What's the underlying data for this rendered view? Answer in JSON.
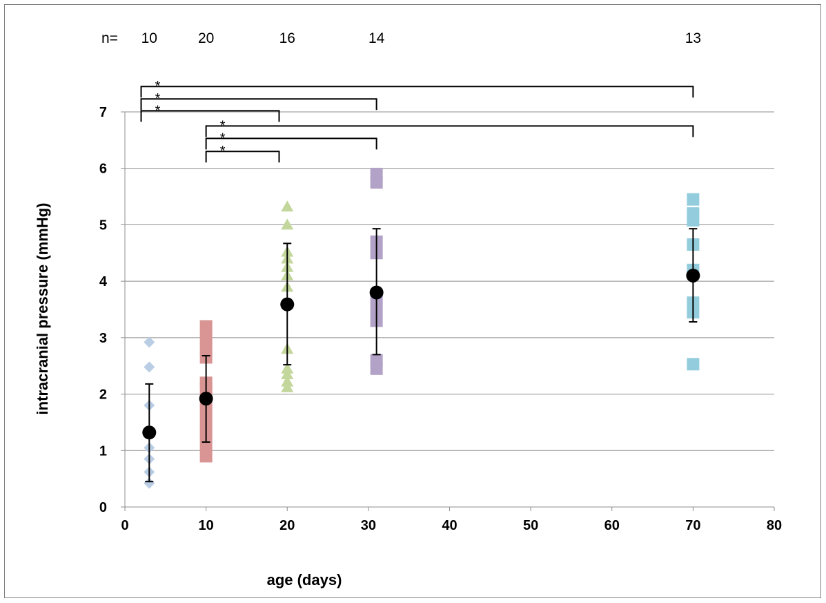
{
  "chart_data": {
    "type": "scatter",
    "xlabel": "age (days)",
    "ylabel": "intracranial pressure (mmHg)",
    "xlim": [
      0,
      80
    ],
    "ylim": [
      0,
      7
    ],
    "xticks": [
      0,
      10,
      20,
      30,
      40,
      50,
      60,
      70,
      80
    ],
    "yticks": [
      0,
      1,
      2,
      3,
      4,
      5,
      6,
      7
    ],
    "grid": "horizontal",
    "n_label": "n=",
    "groups": [
      {
        "x": 3,
        "n": "10",
        "marker": "diamond",
        "color": "#b9cde5",
        "points": [
          0.42,
          0.62,
          0.85,
          1.05,
          1.8,
          2.48,
          2.92
        ],
        "mean": 1.32,
        "err_low": 0.45,
        "err_high": 2.18
      },
      {
        "x": 10,
        "n": "20",
        "marker": "square",
        "color": "#d99594",
        "points": [
          0.9,
          1.1,
          1.3,
          1.5,
          1.7,
          1.9,
          2.1,
          2.2,
          2.65,
          2.8,
          3.0,
          3.2
        ],
        "mean": 1.92,
        "err_low": 1.15,
        "err_high": 2.68
      },
      {
        "x": 20,
        "n": "16",
        "marker": "triangle",
        "color": "#c3d69b",
        "points": [
          2.12,
          2.22,
          2.35,
          2.45,
          2.8,
          3.9,
          4.1,
          4.25,
          4.4,
          4.52,
          5.0,
          5.32
        ],
        "mean": 3.59,
        "err_low": 2.52,
        "err_high": 4.67
      },
      {
        "x": 31,
        "n": "14",
        "marker": "square",
        "color": "#b3a2c7",
        "points": [
          2.45,
          2.6,
          3.3,
          3.5,
          3.7,
          4.5,
          4.7,
          5.75,
          5.9
        ],
        "mean": 3.8,
        "err_low": 2.7,
        "err_high": 4.93
      },
      {
        "x": 70,
        "n": "13",
        "marker": "square",
        "color": "#93cddd",
        "points": [
          2.53,
          3.45,
          3.62,
          4.2,
          4.65,
          5.08,
          5.2,
          5.45
        ],
        "mean": 4.1,
        "err_low": 3.28,
        "err_high": 4.93
      }
    ],
    "significance": [
      {
        "from": 2,
        "to": 70,
        "y": 7.45,
        "label": "*"
      },
      {
        "from": 2,
        "to": 31,
        "y": 7.23,
        "label": "*"
      },
      {
        "from": 2,
        "to": 19,
        "y": 7.02,
        "label": "*"
      },
      {
        "from": 10,
        "to": 70,
        "y": 6.75,
        "label": "*"
      },
      {
        "from": 10,
        "to": 31,
        "y": 6.53,
        "label": "*"
      },
      {
        "from": 10,
        "to": 19,
        "y": 6.3,
        "label": "*"
      }
    ]
  }
}
